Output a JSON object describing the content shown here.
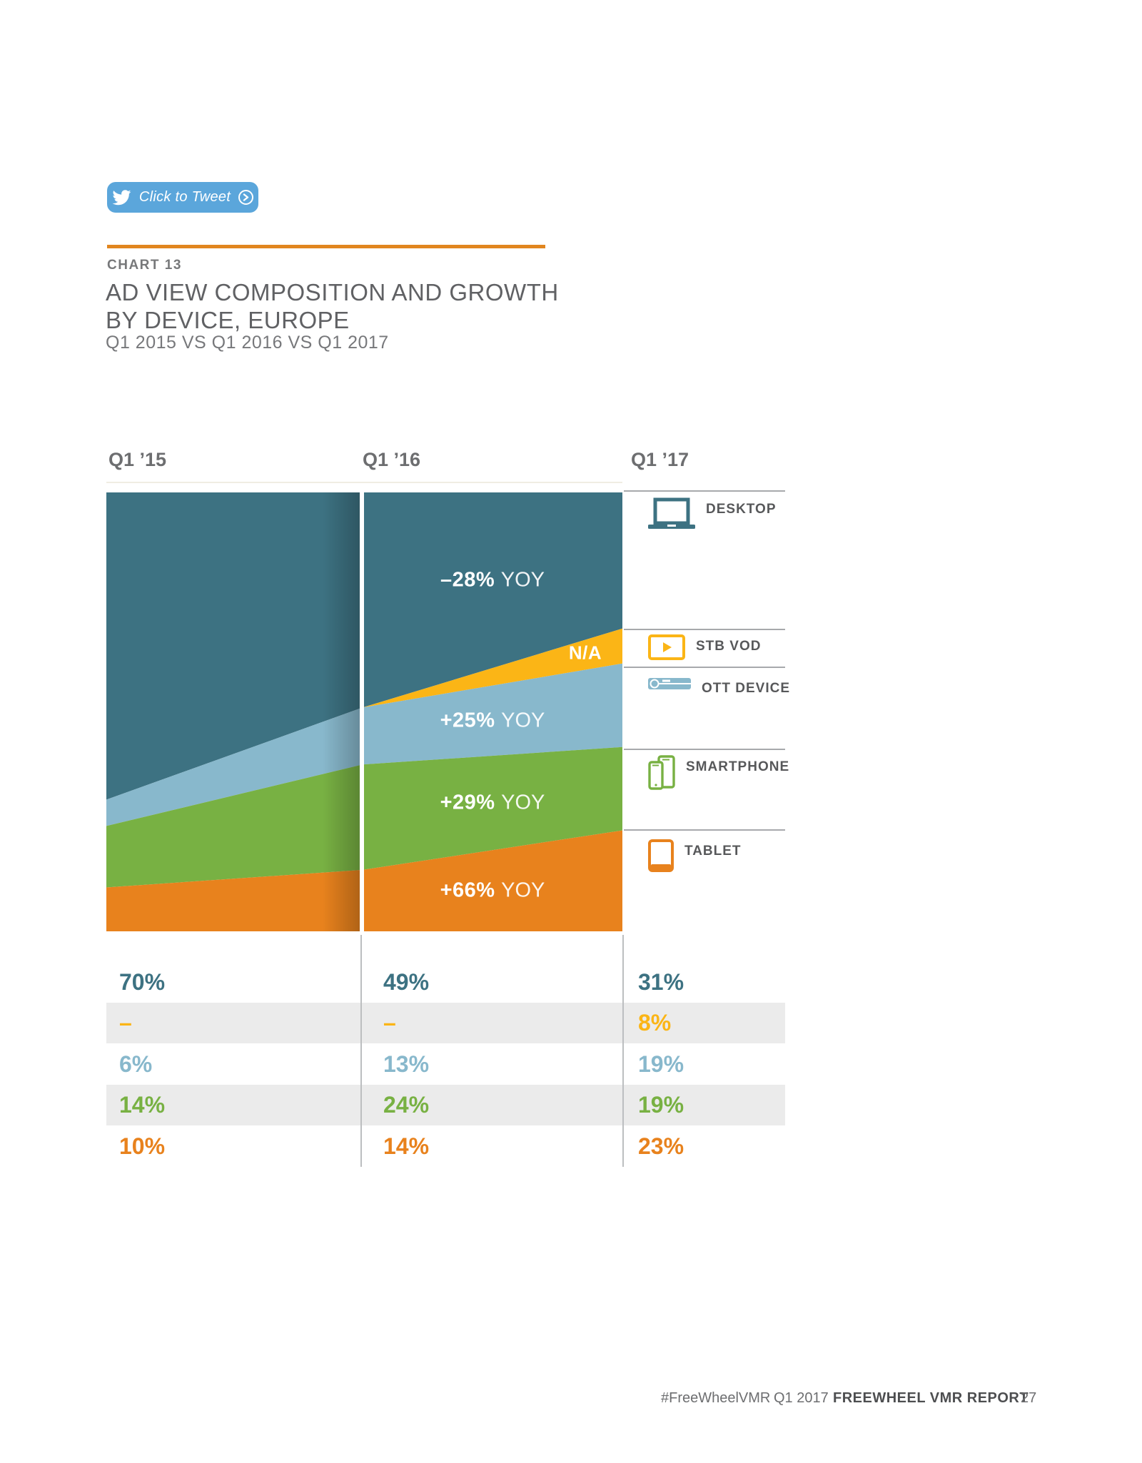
{
  "tweet_button": {
    "label": "Click to Tweet"
  },
  "chart_header": {
    "eyebrow": "CHART 13",
    "title_line1": "AD VIEW COMPOSITION AND GROWTH",
    "title_line2": "BY DEVICE, EUROPE",
    "subtitle": "Q1 2015 VS Q1 2016 VS Q1 2017"
  },
  "columns": [
    "Q1 ’15",
    "Q1 ’16",
    "Q1 ’17"
  ],
  "chart_data": {
    "type": "area",
    "stacked": true,
    "title": "Ad view composition and growth by device, Europe",
    "categories": [
      "Q1 '15",
      "Q1 '16",
      "Q1 '17"
    ],
    "unit": "percent of ad views",
    "ylim": [
      0,
      100
    ],
    "legend_position": "right",
    "series": [
      {
        "name": "DESKTOP",
        "icon": "laptop-icon",
        "color": "#3D7282",
        "values": [
          70,
          49,
          31
        ],
        "yoy_strong": "–28%",
        "yoy_light": "YOY"
      },
      {
        "name": "STB VOD",
        "icon": "stb-vod-icon",
        "color": "#FBB516",
        "values": [
          0,
          0,
          8
        ],
        "yoy_strong": "N/A",
        "yoy_light": ""
      },
      {
        "name": "OTT DEVICE",
        "icon": "ott-stick-icon",
        "color": "#88B8CC",
        "values": [
          6,
          13,
          19
        ],
        "yoy_strong": "+25%",
        "yoy_light": "YOY"
      },
      {
        "name": "SMARTPHONE",
        "icon": "smartphone-icon",
        "color": "#78B143",
        "values": [
          14,
          24,
          19
        ],
        "yoy_strong": "+29%",
        "yoy_light": "YOY"
      },
      {
        "name": "TABLET",
        "icon": "tablet-icon",
        "color": "#E8821D",
        "values": [
          10,
          14,
          23
        ],
        "yoy_strong": "+66%",
        "yoy_light": "YOY"
      }
    ],
    "value_rows": [
      {
        "cells": [
          "70%",
          "49%",
          "31%"
        ]
      },
      {
        "cells": [
          "–",
          "–",
          "8%"
        ]
      },
      {
        "cells": [
          "6%",
          "13%",
          "19%"
        ]
      },
      {
        "cells": [
          "14%",
          "24%",
          "19%"
        ]
      },
      {
        "cells": [
          "10%",
          "14%",
          "23%"
        ]
      }
    ]
  },
  "footer": {
    "hashtag": "#FreeWheelVMR",
    "quarter": "Q1 2017",
    "report": "FREEWHEEL VMR REPORT",
    "page": "27"
  }
}
